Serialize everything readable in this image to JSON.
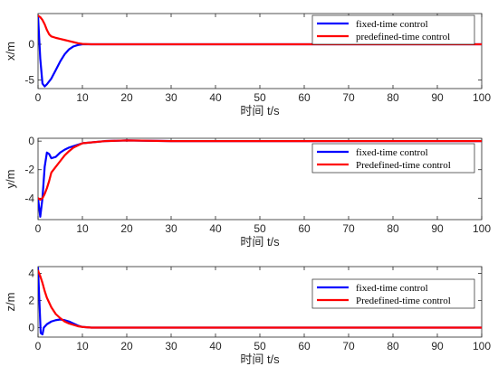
{
  "chart_data": [
    {
      "type": "line",
      "xlabel": "时间 t/s",
      "ylabel": "x/m",
      "xlim": [
        0,
        100
      ],
      "ylim": [
        -6.2,
        4.3
      ],
      "xticks": [
        "0",
        "10",
        "20",
        "30",
        "40",
        "50",
        "60",
        "70",
        "80",
        "90",
        "100"
      ],
      "yticks": [
        "-5",
        "0"
      ],
      "ytick_values": [
        -5,
        0
      ],
      "legend_position": "top-right",
      "series": [
        {
          "name": "fixed-time control",
          "color": "#0000ff",
          "x": [
            0,
            0.5,
            1,
            1.5,
            2,
            3,
            4,
            5,
            6,
            7,
            8,
            9,
            10,
            12,
            100
          ],
          "y": [
            4.0,
            -2.0,
            -5.5,
            -5.9,
            -5.6,
            -4.8,
            -3.6,
            -2.4,
            -1.4,
            -0.7,
            -0.3,
            -0.1,
            0.0,
            0.0,
            0.0
          ]
        },
        {
          "name": "predefined-time control",
          "color": "#ff0000",
          "x": [
            0,
            0.5,
            1,
            1.5,
            2,
            2.5,
            3,
            4,
            5,
            6,
            7,
            8,
            9,
            10,
            12,
            100
          ],
          "y": [
            4.0,
            3.8,
            3.4,
            2.8,
            2.0,
            1.4,
            1.1,
            0.9,
            0.75,
            0.6,
            0.45,
            0.3,
            0.15,
            0.05,
            0.0,
            0.0
          ]
        }
      ]
    },
    {
      "type": "line",
      "xlabel": "时间 t/s",
      "ylabel": "y/m",
      "xlim": [
        0,
        100
      ],
      "ylim": [
        -5.5,
        0.2
      ],
      "xticks": [
        "0",
        "10",
        "20",
        "30",
        "40",
        "50",
        "60",
        "70",
        "80",
        "90",
        "100"
      ],
      "yticks": [
        "-4",
        "-2",
        "0"
      ],
      "ytick_values": [
        -4,
        -2,
        0
      ],
      "legend_position": "right",
      "series": [
        {
          "name": "fixed-time control",
          "color": "#0000ff",
          "x": [
            0,
            0.5,
            1,
            1.5,
            2,
            2.5,
            3,
            4,
            5,
            6,
            7,
            8,
            10,
            15,
            20,
            30,
            100
          ],
          "y": [
            -4.0,
            -5.3,
            -4.0,
            -1.8,
            -0.8,
            -0.9,
            -1.2,
            -1.1,
            -0.8,
            -0.6,
            -0.45,
            -0.35,
            -0.15,
            0.0,
            0.05,
            0.0,
            0.0
          ]
        },
        {
          "name": "Predefined-time control",
          "color": "#ff0000",
          "x": [
            0,
            0.5,
            1,
            1.5,
            2,
            2.5,
            3,
            4,
            5,
            6,
            7,
            8,
            10,
            15,
            20,
            30,
            100
          ],
          "y": [
            -4.0,
            -4.1,
            -4.0,
            -3.7,
            -3.3,
            -2.8,
            -2.2,
            -1.8,
            -1.4,
            -1.0,
            -0.7,
            -0.45,
            -0.15,
            0.0,
            0.05,
            0.0,
            0.0
          ]
        }
      ]
    },
    {
      "type": "line",
      "xlabel": "时间 t/s",
      "ylabel": "z/m",
      "xlim": [
        0,
        100
      ],
      "ylim": [
        -0.7,
        4.5
      ],
      "xticks": [
        "0",
        "10",
        "20",
        "30",
        "40",
        "50",
        "60",
        "70",
        "80",
        "90",
        "100"
      ],
      "yticks": [
        "0",
        "2",
        "4"
      ],
      "ytick_values": [
        0,
        2,
        4
      ],
      "legend_position": "top-right",
      "series": [
        {
          "name": "fixed-time control",
          "color": "#0000ff",
          "x": [
            0,
            0.3,
            0.6,
            1,
            1.3,
            2,
            3,
            4,
            5,
            6,
            7,
            8,
            9,
            10,
            12,
            100
          ],
          "y": [
            4.4,
            2.0,
            -0.4,
            -0.5,
            0.0,
            0.25,
            0.45,
            0.55,
            0.6,
            0.55,
            0.45,
            0.3,
            0.15,
            0.05,
            0.0,
            0.0
          ]
        },
        {
          "name": "Predefined-time control",
          "color": "#ff0000",
          "x": [
            0,
            0.5,
            1,
            1.5,
            2,
            3,
            4,
            5,
            6,
            7,
            8,
            9,
            10,
            12,
            100
          ],
          "y": [
            4.2,
            3.8,
            3.3,
            2.7,
            2.2,
            1.5,
            1.0,
            0.7,
            0.45,
            0.3,
            0.2,
            0.1,
            0.05,
            0.0,
            0.0
          ]
        }
      ]
    }
  ]
}
